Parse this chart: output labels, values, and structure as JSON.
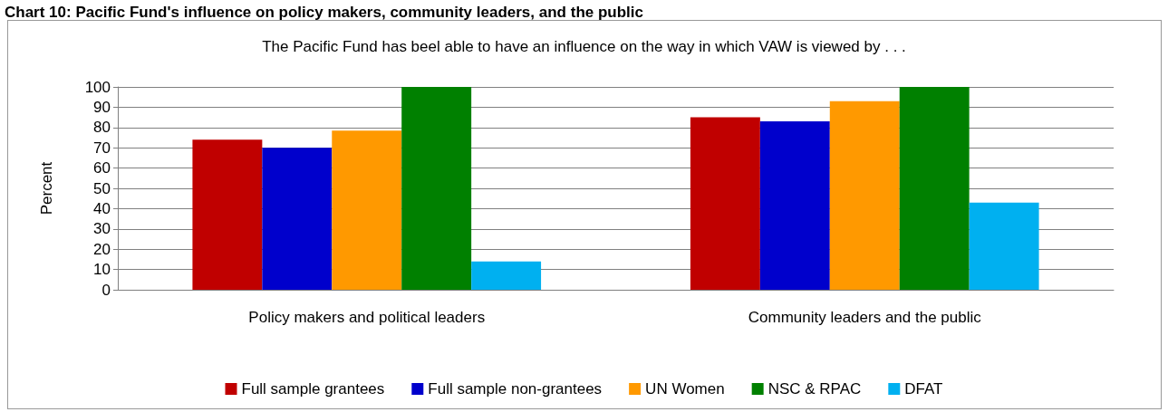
{
  "chart_data": {
    "type": "bar",
    "title": "Chart 10: Pacific Fund's influence on policy makers, community leaders, and the public",
    "subtitle": "The Pacific Fund has beel able to have an influence on the way in which VAW is viewed by . . .",
    "ylabel": "Percent",
    "categories": [
      "Policy makers and political leaders",
      "Community leaders and the public"
    ],
    "series": [
      {
        "name": "Full sample grantees",
        "color": "#c00000",
        "values": [
          74,
          85
        ]
      },
      {
        "name": "Full sample non-grantees",
        "color": "#0000cc",
        "values": [
          70,
          83
        ]
      },
      {
        "name": "UN Women",
        "color": "#ff9900",
        "values": [
          78.5,
          93
        ]
      },
      {
        "name": "NSC & RPAC",
        "color": "#008000",
        "values": [
          100,
          100
        ]
      },
      {
        "name": "DFAT",
        "color": "#00b0f0",
        "values": [
          14,
          43
        ]
      }
    ],
    "ylim": [
      0,
      100
    ],
    "yticks": [
      0,
      10,
      20,
      30,
      40,
      50,
      60,
      70,
      80,
      90,
      100
    ],
    "grid": "y",
    "legend": "bottom"
  }
}
